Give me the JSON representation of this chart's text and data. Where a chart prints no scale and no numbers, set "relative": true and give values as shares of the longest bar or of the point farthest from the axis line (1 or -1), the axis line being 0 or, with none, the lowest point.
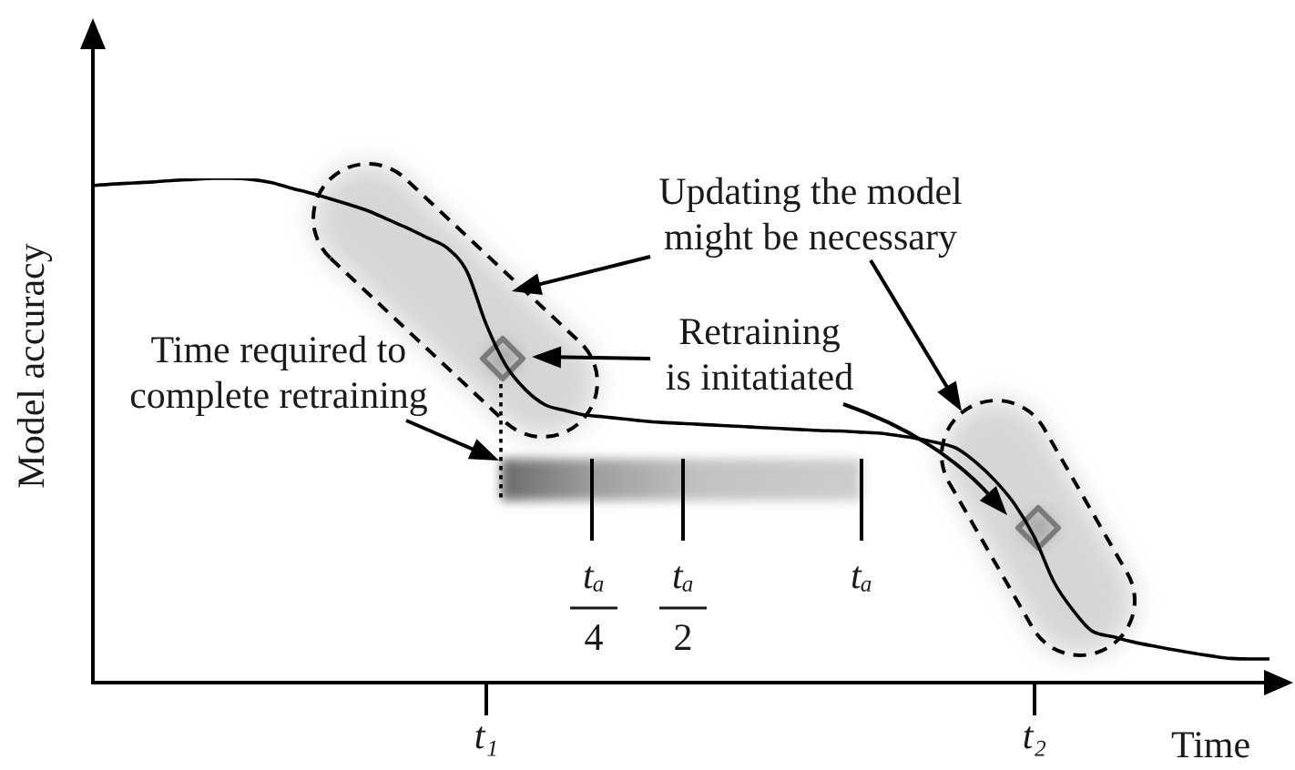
{
  "chart_data": {
    "type": "line",
    "relative": true,
    "xlabel": "Time",
    "ylabel": "Model accuracy",
    "color": "#000000",
    "marker": "none",
    "categories": [
      null,
      null,
      null,
      null,
      null,
      null,
      null,
      null,
      null,
      null,
      null,
      null,
      null,
      null,
      null,
      null,
      null,
      null,
      null,
      null,
      "t₁",
      null,
      null,
      null,
      null,
      null,
      null,
      null,
      null,
      null,
      null,
      null,
      null,
      null,
      null,
      null,
      null,
      null,
      null,
      null,
      null,
      null,
      null,
      null,
      null,
      null,
      null,
      null,
      "t₂",
      null,
      null,
      null,
      null,
      null,
      null,
      null,
      null,
      null,
      null,
      null,
      null
    ],
    "values": [
      0.986,
      0.989,
      0.991,
      0.993,
      0.996,
      0.998,
      1,
      1,
      0.998,
      0.992,
      0.981,
      0.971,
      0.96,
      0.948,
      0.935,
      0.918,
      0.901,
      0.882,
      0.862,
      0.816,
      0.71,
      0.629,
      0.581,
      0.551,
      0.54,
      0.531,
      0.527,
      0.523,
      0.519,
      0.516,
      0.514,
      0.512,
      0.51,
      0.508,
      0.506,
      0.504,
      0.502,
      0.5,
      0.499,
      0.497,
      0.495,
      0.49,
      0.484,
      0.476,
      0.465,
      0.437,
      0.4,
      0.353,
      0.288,
      0.199,
      0.142,
      0.101,
      0.091,
      0.081,
      0.073,
      0.066,
      0.059,
      0.053,
      0.048,
      0.047,
      0.047
    ],
    "annotations": [
      "Updating the model might be necessary",
      "Retraining is initatiated",
      "Time required to complete retraining",
      "tₐ",
      "4",
      "tₐ",
      "2",
      "tₐ"
    ]
  }
}
